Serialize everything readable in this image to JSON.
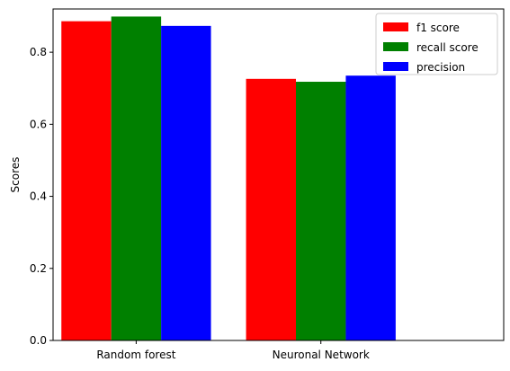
{
  "chart_data": {
    "type": "bar",
    "title": "",
    "xlabel": "",
    "ylabel": "Scores",
    "ylim": [
      0,
      0.92
    ],
    "yticks": [
      0.0,
      0.2,
      0.4,
      0.6,
      0.8
    ],
    "ytick_labels": [
      "0.0",
      "0.2",
      "0.4",
      "0.6",
      "0.8"
    ],
    "categories": [
      "Random forest",
      "Neuronal Network"
    ],
    "series": [
      {
        "name": "f1 score",
        "color": "#ff0000",
        "values": [
          0.886,
          0.726
        ]
      },
      {
        "name": "recall score",
        "color": "#008000",
        "values": [
          0.899,
          0.718
        ]
      },
      {
        "name": "precision",
        "color": "#0000ff",
        "values": [
          0.873,
          0.735
        ]
      }
    ],
    "legend_position": "top-right",
    "grid": false
  }
}
